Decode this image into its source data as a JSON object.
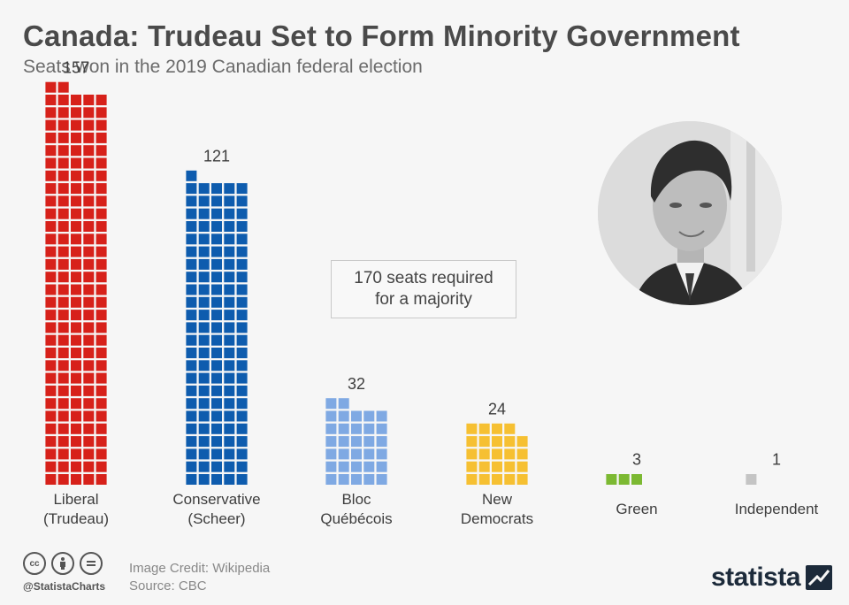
{
  "header": {
    "title": "Canada: Trudeau Set to Form Minority Government",
    "subtitle": "Seats won in the 2019 Canadian federal election"
  },
  "callout": {
    "line1": "170 seats required",
    "line2": "for a majority"
  },
  "footer": {
    "handle": "@StatistaCharts",
    "image_credit": "Image Credit: Wikipedia",
    "source": "Source: CBC",
    "logo_text": "statista",
    "license_icons": [
      "cc-icon",
      "by-icon",
      "equals-icon"
    ]
  },
  "chart_data": {
    "type": "bar",
    "title": "Canada: Trudeau Set to Form Minority Government",
    "subtitle": "Seats won in the 2019 Canadian federal election",
    "categories": [
      "Liberal (Trudeau)",
      "Conservative (Scheer)",
      "Bloc Québécois",
      "New Democrats",
      "Green",
      "Independent"
    ],
    "labels": [
      [
        "Liberal",
        "(Trudeau)"
      ],
      [
        "Conservative",
        "(Scheer)"
      ],
      [
        "Bloc",
        "Québécois"
      ],
      [
        "New",
        "Democrats"
      ],
      [
        "Green"
      ],
      [
        "Independent"
      ]
    ],
    "values": [
      157,
      121,
      32,
      24,
      3,
      1
    ],
    "colors": [
      "#d7211a",
      "#0e5cae",
      "#7fa9e3",
      "#f6c032",
      "#7cb932",
      "#c4c4c4"
    ],
    "annotation": "170 seats required for a majority"
  }
}
